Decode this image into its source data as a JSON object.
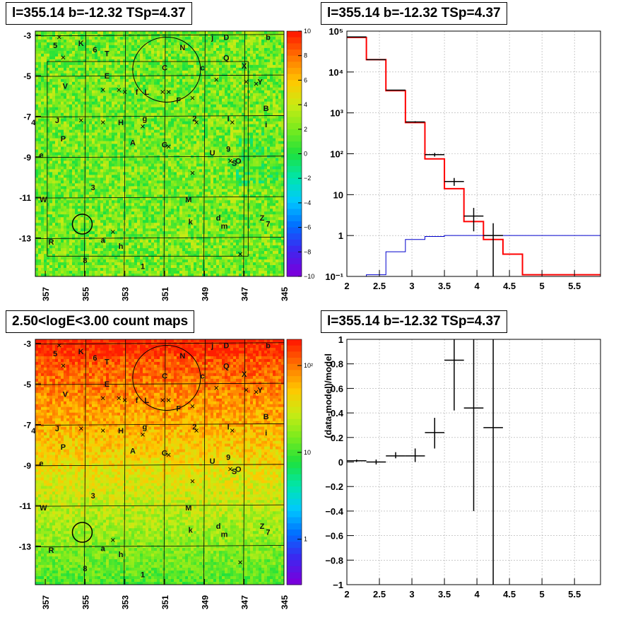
{
  "panels": {
    "tl_title": "l=355.14 b=-12.32 TSp=4.37",
    "tr_title": "l=355.14 b=-12.32 TSp=4.37",
    "bl_title": "2.50<logE<3.00 count maps",
    "br_title": "l=355.14 b=-12.32 TSp=4.37"
  },
  "map_labels": [
    {
      "t": "5",
      "l": 356.5,
      "b": -3.5
    },
    {
      "t": "K",
      "l": 355.2,
      "b": -3.4
    },
    {
      "t": "6",
      "l": 354.5,
      "b": -3.7
    },
    {
      "t": "T",
      "l": 353.9,
      "b": -3.9
    },
    {
      "t": "j",
      "l": 348.6,
      "b": -3.1
    },
    {
      "t": "D",
      "l": 347.9,
      "b": -3.1
    },
    {
      "t": "b",
      "l": 345.8,
      "b": -3.1
    },
    {
      "t": "N",
      "l": 350.1,
      "b": -3.6
    },
    {
      "t": "Q",
      "l": 347.9,
      "b": -4.1
    },
    {
      "t": "C",
      "l": 351.0,
      "b": -4.6
    },
    {
      "t": "c",
      "l": 349.1,
      "b": -4.6
    },
    {
      "t": "X",
      "l": 347.0,
      "b": -4.5
    },
    {
      "t": "E",
      "l": 353.9,
      "b": -5.0
    },
    {
      "t": "V",
      "l": 356.0,
      "b": -5.5
    },
    {
      "t": "Y",
      "l": 346.2,
      "b": -5.3
    },
    {
      "t": "f",
      "l": 352.4,
      "b": -5.8
    },
    {
      "t": "L",
      "l": 351.9,
      "b": -5.8
    },
    {
      "t": "F",
      "l": 350.3,
      "b": -6.2
    },
    {
      "t": "B",
      "l": 345.9,
      "b": -6.6
    },
    {
      "t": "4",
      "l": 357.6,
      "b": -7.3
    },
    {
      "t": "J",
      "l": 356.4,
      "b": -7.2
    },
    {
      "t": "H",
      "l": 353.2,
      "b": -7.3
    },
    {
      "t": "g",
      "l": 352.0,
      "b": -7.1
    },
    {
      "t": "2",
      "l": 349.5,
      "b": -7.1
    },
    {
      "t": "I",
      "l": 347.8,
      "b": -7.1
    },
    {
      "t": "i",
      "l": 345.9,
      "b": -7.4
    },
    {
      "t": "P",
      "l": 356.1,
      "b": -8.1
    },
    {
      "t": "A",
      "l": 352.6,
      "b": -8.3
    },
    {
      "t": "G",
      "l": 351.0,
      "b": -8.4
    },
    {
      "t": "9",
      "l": 347.8,
      "b": -8.6
    },
    {
      "t": "U",
      "l": 348.6,
      "b": -8.8
    },
    {
      "t": "e",
      "l": 357.2,
      "b": -8.9
    },
    {
      "t": "S",
      "l": 347.5,
      "b": -9.3
    },
    {
      "t": "O",
      "l": 347.3,
      "b": -9.2
    },
    {
      "t": "3",
      "l": 354.6,
      "b": -10.5
    },
    {
      "t": "W",
      "l": 357.1,
      "b": -11.1
    },
    {
      "t": "M",
      "l": 349.8,
      "b": -11.1
    },
    {
      "t": "d",
      "l": 348.3,
      "b": -12.0
    },
    {
      "t": "Z",
      "l": 346.1,
      "b": -12.0
    },
    {
      "t": "7",
      "l": 345.8,
      "b": -12.3
    },
    {
      "t": "k",
      "l": 349.7,
      "b": -12.2
    },
    {
      "t": "m",
      "l": 348.0,
      "b": -12.4
    },
    {
      "t": "a",
      "l": 354.1,
      "b": -13.1
    },
    {
      "t": "R",
      "l": 356.7,
      "b": -13.2
    },
    {
      "t": "h",
      "l": 353.2,
      "b": -13.4
    },
    {
      "t": "8",
      "l": 355.0,
      "b": -14.1
    },
    {
      "t": "1",
      "l": 352.1,
      "b": -14.4
    }
  ],
  "map_crosses": [
    [
      356.3,
      -3.1
    ],
    [
      356.1,
      -4.1
    ],
    [
      354.1,
      -5.7
    ],
    [
      353.3,
      -5.7
    ],
    [
      350.8,
      -5.8
    ],
    [
      349.6,
      -6.1
    ],
    [
      348.4,
      -5.2
    ],
    [
      346.4,
      -5.4
    ],
    [
      353.0,
      -5.8
    ],
    [
      355.2,
      -7.2
    ],
    [
      354.1,
      -7.3
    ],
    [
      352.1,
      -7.5
    ],
    [
      349.4,
      -7.3
    ],
    [
      347.6,
      -7.3
    ],
    [
      350.8,
      -8.5
    ],
    [
      347.7,
      -9.2
    ],
    [
      349.6,
      -9.8
    ],
    [
      353.6,
      -12.7
    ],
    [
      347.2,
      -13.8
    ],
    [
      351.1,
      -5.8
    ],
    [
      346.9,
      -5.3
    ]
  ],
  "chart_data": [
    {
      "type": "heatmap",
      "name": "top-left-residual-map",
      "xticks": [
        "357",
        "355",
        "353",
        "351",
        "349",
        "347",
        "345"
      ],
      "yticks": [
        "-3",
        "-5",
        "-7",
        "-9",
        "-11",
        "-13"
      ],
      "xlim": [
        357.5,
        345
      ],
      "ylim": [
        -14.9,
        -2.8
      ],
      "colorbar": {
        "scale": "linear",
        "min": -10,
        "max": 10,
        "ticks": [
          "10",
          "8",
          "6",
          "4",
          "2",
          "0",
          "−2",
          "−4",
          "−6",
          "−8",
          "−10"
        ]
      }
    },
    {
      "type": "line",
      "name": "top-right-counts-spectrum",
      "xlim": [
        2,
        5.9
      ],
      "ylim": [
        0.1,
        100000
      ],
      "yscale": "log",
      "grid": true,
      "xticks": [
        "2",
        "2.5",
        "3",
        "3.5",
        "4",
        "4.5",
        "5",
        "5.5"
      ],
      "yticks": [
        "10⁻¹",
        "1",
        "10",
        "10²",
        "10³",
        "10⁴",
        "10⁵"
      ],
      "series": [
        {
          "kind": "model-histogram",
          "color": "#ff0000",
          "bins": [
            [
              2.0,
              2.3,
              70000
            ],
            [
              2.3,
              2.6,
              20000
            ],
            [
              2.6,
              2.9,
              3500
            ],
            [
              2.9,
              3.2,
              580
            ],
            [
              3.2,
              3.5,
              75
            ],
            [
              3.5,
              3.8,
              14
            ],
            [
              3.8,
              4.1,
              2.2
            ],
            [
              4.1,
              4.4,
              0.8
            ],
            [
              4.4,
              4.7,
              0.35
            ],
            [
              4.7,
              5.9,
              0.11
            ]
          ]
        },
        {
          "kind": "source-histogram",
          "color": "#0000cc",
          "bins": [
            [
              2.3,
              2.6,
              0.11
            ],
            [
              2.6,
              2.9,
              0.4
            ],
            [
              2.9,
              3.2,
              0.8
            ],
            [
              3.2,
              3.5,
              0.95
            ],
            [
              3.5,
              5.9,
              1.0
            ]
          ]
        },
        {
          "kind": "data",
          "color": "#000000",
          "points": [
            [
              2.15,
              72000,
              2.0,
              2.3
            ],
            [
              2.45,
              20000,
              2.3,
              2.6
            ],
            [
              2.75,
              3600,
              2.6,
              2.9
            ],
            [
              3.05,
              600,
              2.9,
              3.2
            ],
            [
              3.35,
              95,
              3.2,
              3.5
            ],
            [
              3.65,
              21,
              3.5,
              3.8
            ],
            [
              3.95,
              3.0,
              3.8,
              4.1
            ],
            [
              4.25,
              1.0,
              4.1,
              4.4
            ]
          ]
        }
      ]
    },
    {
      "type": "heatmap",
      "name": "bottom-left-count-map",
      "xticks": [
        "357",
        "355",
        "353",
        "351",
        "349",
        "347",
        "345"
      ],
      "yticks": [
        "-3",
        "-5",
        "-7",
        "-9",
        "-11",
        "-13"
      ],
      "xlim": [
        357.5,
        345
      ],
      "ylim": [
        -14.9,
        -2.8
      ],
      "colorbar": {
        "scale": "log",
        "min": 0.3,
        "max": 200,
        "ticks": [
          "10²",
          "10",
          "1"
        ]
      }
    },
    {
      "type": "scatter",
      "name": "bottom-right-residuals",
      "xlim": [
        2,
        5.9
      ],
      "ylim": [
        -1,
        1
      ],
      "grid": true,
      "ylabel": "(data-model)/model",
      "xticks": [
        "2",
        "2.5",
        "3",
        "3.5",
        "4",
        "4.5",
        "5",
        "5.5"
      ],
      "yticks": [
        "1",
        "0.8",
        "0.6",
        "0.4",
        "0.2",
        "0",
        "−0.2",
        "−0.4",
        "−0.6",
        "−0.8",
        "−1"
      ],
      "points": [
        {
          "x": 2.15,
          "y": 0.01,
          "xlo": 2.0,
          "xhi": 2.3,
          "ylo": 0.0,
          "yhi": 0.02
        },
        {
          "x": 2.45,
          "y": 0.0,
          "xlo": 2.3,
          "xhi": 2.6,
          "ylo": -0.02,
          "yhi": 0.02
        },
        {
          "x": 2.75,
          "y": 0.05,
          "xlo": 2.6,
          "xhi": 2.9,
          "ylo": 0.03,
          "yhi": 0.08
        },
        {
          "x": 3.05,
          "y": 0.05,
          "xlo": 2.9,
          "xhi": 3.2,
          "ylo": 0.0,
          "yhi": 0.11
        },
        {
          "x": 3.35,
          "y": 0.24,
          "xlo": 3.2,
          "xhi": 3.5,
          "ylo": 0.11,
          "yhi": 0.36
        },
        {
          "x": 3.65,
          "y": 0.83,
          "xlo": 3.5,
          "xhi": 3.8,
          "ylo": 0.42,
          "yhi": 1.0
        },
        {
          "x": 3.95,
          "y": 0.44,
          "xlo": 3.8,
          "xhi": 4.1,
          "ylo": -0.4,
          "yhi": 1.0
        },
        {
          "x": 4.25,
          "y": 0.28,
          "xlo": 4.1,
          "xhi": 4.4,
          "ylo": -1.0,
          "yhi": 1.0
        }
      ]
    }
  ]
}
